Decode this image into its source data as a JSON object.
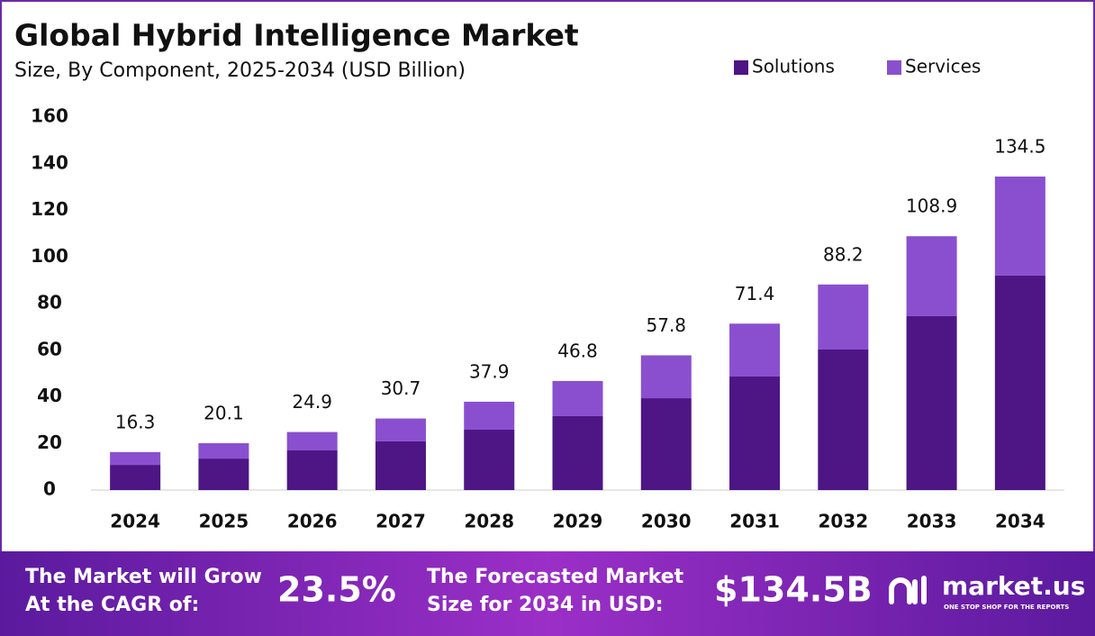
{
  "chart_data": {
    "type": "stacked_bar",
    "title": "Global Hybrid Intelligence Market",
    "subtitle": "Size, By Component, 2025-2034 (USD Billion)",
    "categories": [
      "2024",
      "2025",
      "2026",
      "2027",
      "2028",
      "2029",
      "2030",
      "2031",
      "2032",
      "2033",
      "2034"
    ],
    "series": [
      {
        "name": "Solutions",
        "color": "#4e1585",
        "values": [
          10.8,
          13.5,
          17.0,
          20.9,
          25.9,
          31.7,
          39.4,
          48.7,
          60.3,
          74.6,
          92.0
        ]
      },
      {
        "name": "Services",
        "color": "#8a4fcf",
        "values": [
          5.5,
          6.6,
          7.9,
          9.8,
          12.0,
          15.1,
          18.4,
          22.7,
          27.9,
          34.3,
          42.5
        ]
      }
    ],
    "totals": [
      16.3,
      20.1,
      24.9,
      30.7,
      37.9,
      46.8,
      57.8,
      71.4,
      88.2,
      108.9,
      134.5
    ],
    "ylim": [
      0,
      160
    ],
    "yticks": [
      0,
      20,
      40,
      60,
      80,
      100,
      120,
      140,
      160
    ],
    "grid": false,
    "legend": "top-right"
  },
  "footer": {
    "cagr_label": [
      "The Market will Grow",
      "At the CAGR of:"
    ],
    "cagr_value": "23.5%",
    "forecast_label": [
      "The Forecasted Market",
      "Size for 2034 in USD:"
    ],
    "forecast_value": "$134.5B",
    "brand": "market.us",
    "tagline": "ONE STOP SHOP FOR THE REPORTS"
  }
}
